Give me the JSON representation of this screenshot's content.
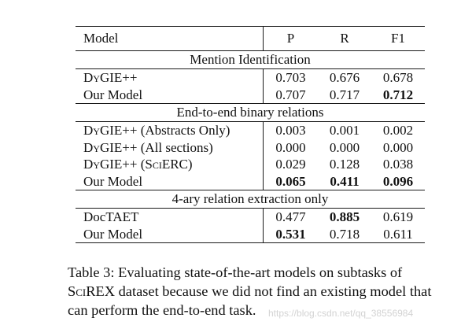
{
  "table": {
    "header": {
      "model": "Model",
      "p": "P",
      "r": "R",
      "f1": "F1"
    },
    "sections": [
      {
        "title": "Mention Identification",
        "rows": [
          {
            "model": "DyGIE++",
            "p": "0.703",
            "r": "0.676",
            "f1": "0.678",
            "bold": []
          },
          {
            "model": "Our Model",
            "p": "0.707",
            "r": "0.717",
            "f1": "0.712",
            "bold": [
              "f1"
            ]
          }
        ]
      },
      {
        "title": "End-to-end binary relations",
        "rows": [
          {
            "model": "DyGIE++ (Abstracts Only)",
            "p": "0.003",
            "r": "0.001",
            "f1": "0.002",
            "bold": []
          },
          {
            "model": "DyGIE++ (All sections)",
            "p": "0.000",
            "r": "0.000",
            "f1": "0.000",
            "bold": []
          },
          {
            "model": "DyGIE++ (SciERC)",
            "p": "0.029",
            "r": "0.128",
            "f1": "0.038",
            "bold": []
          },
          {
            "model": "Our Model",
            "p": "0.065",
            "r": "0.411",
            "f1": "0.096",
            "bold": [
              "p",
              "r",
              "f1"
            ]
          }
        ]
      },
      {
        "title": "4-ary relation extraction only",
        "rows": [
          {
            "model": "DocTAET",
            "p": "0.477",
            "r": "0.885",
            "f1": "0.619",
            "bold": [
              "r"
            ]
          },
          {
            "model": "Our Model",
            "p": "0.531",
            "r": "0.718",
            "f1": "0.611",
            "bold": [
              "p"
            ]
          }
        ]
      }
    ]
  },
  "caption": "Table 3: Evaluating state-of-the-art models on subtasks of SciREX dataset because we did not find an existing model that can perform the end-to-end task.",
  "watermark": "https://blog.csdn.net/qq_38556984"
}
